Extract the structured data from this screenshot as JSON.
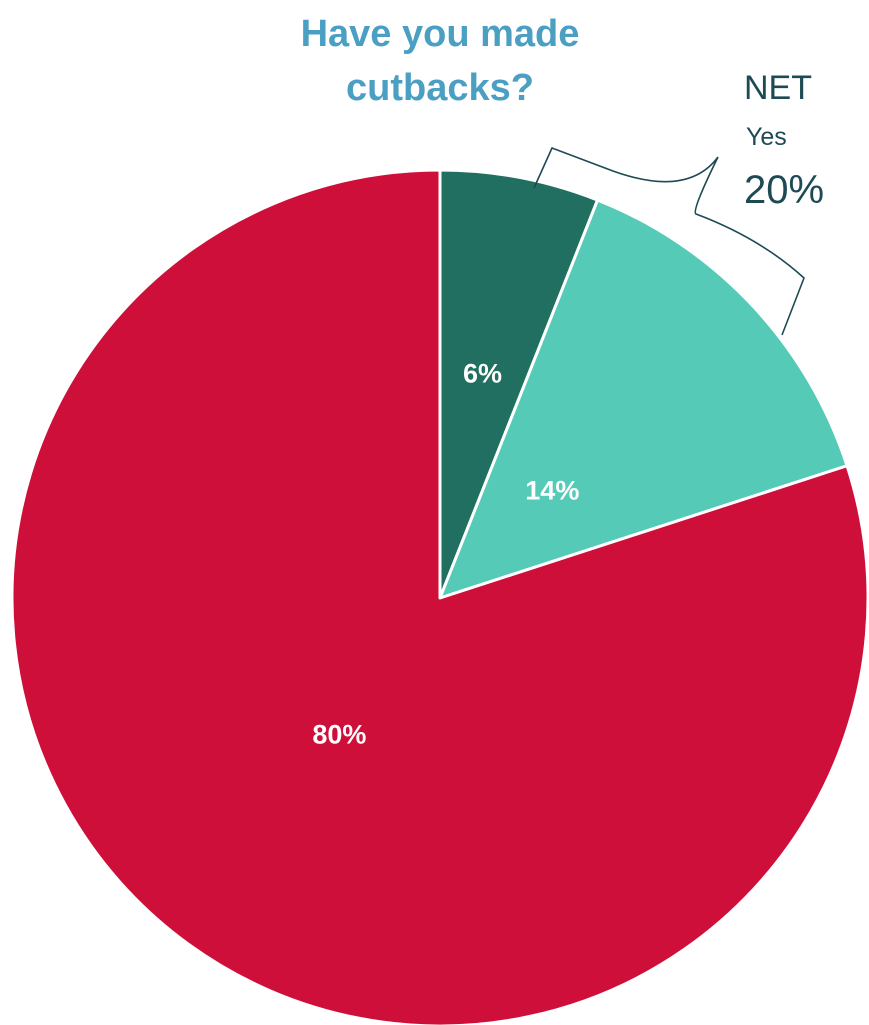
{
  "title_lines": [
    "Have you made",
    "cutbacks?"
  ],
  "net": {
    "heading": "NET",
    "sublabel": "Yes",
    "value": "20%"
  },
  "colors": {
    "title": "#4a9fc2",
    "slice_dark_teal": "#216f60",
    "slice_light_teal": "#55cbb7",
    "slice_red": "#ce0f3a",
    "bracket": "#1d4a55",
    "net_text": "#1d4a55"
  },
  "chart_data": {
    "type": "pie",
    "title": "Have you made cutbacks?",
    "start_angle_deg": 0,
    "direction": "clockwise",
    "slices": [
      {
        "value": 6,
        "label": "6%",
        "color": "#216f60"
      },
      {
        "value": 14,
        "label": "14%",
        "color": "#55cbb7"
      },
      {
        "value": 80,
        "label": "80%",
        "color": "#ce0f3a"
      }
    ],
    "annotations": [
      {
        "type": "bracket",
        "spans_slices": [
          0,
          1
        ],
        "text": [
          "NET",
          "Yes",
          "20%"
        ]
      }
    ]
  }
}
